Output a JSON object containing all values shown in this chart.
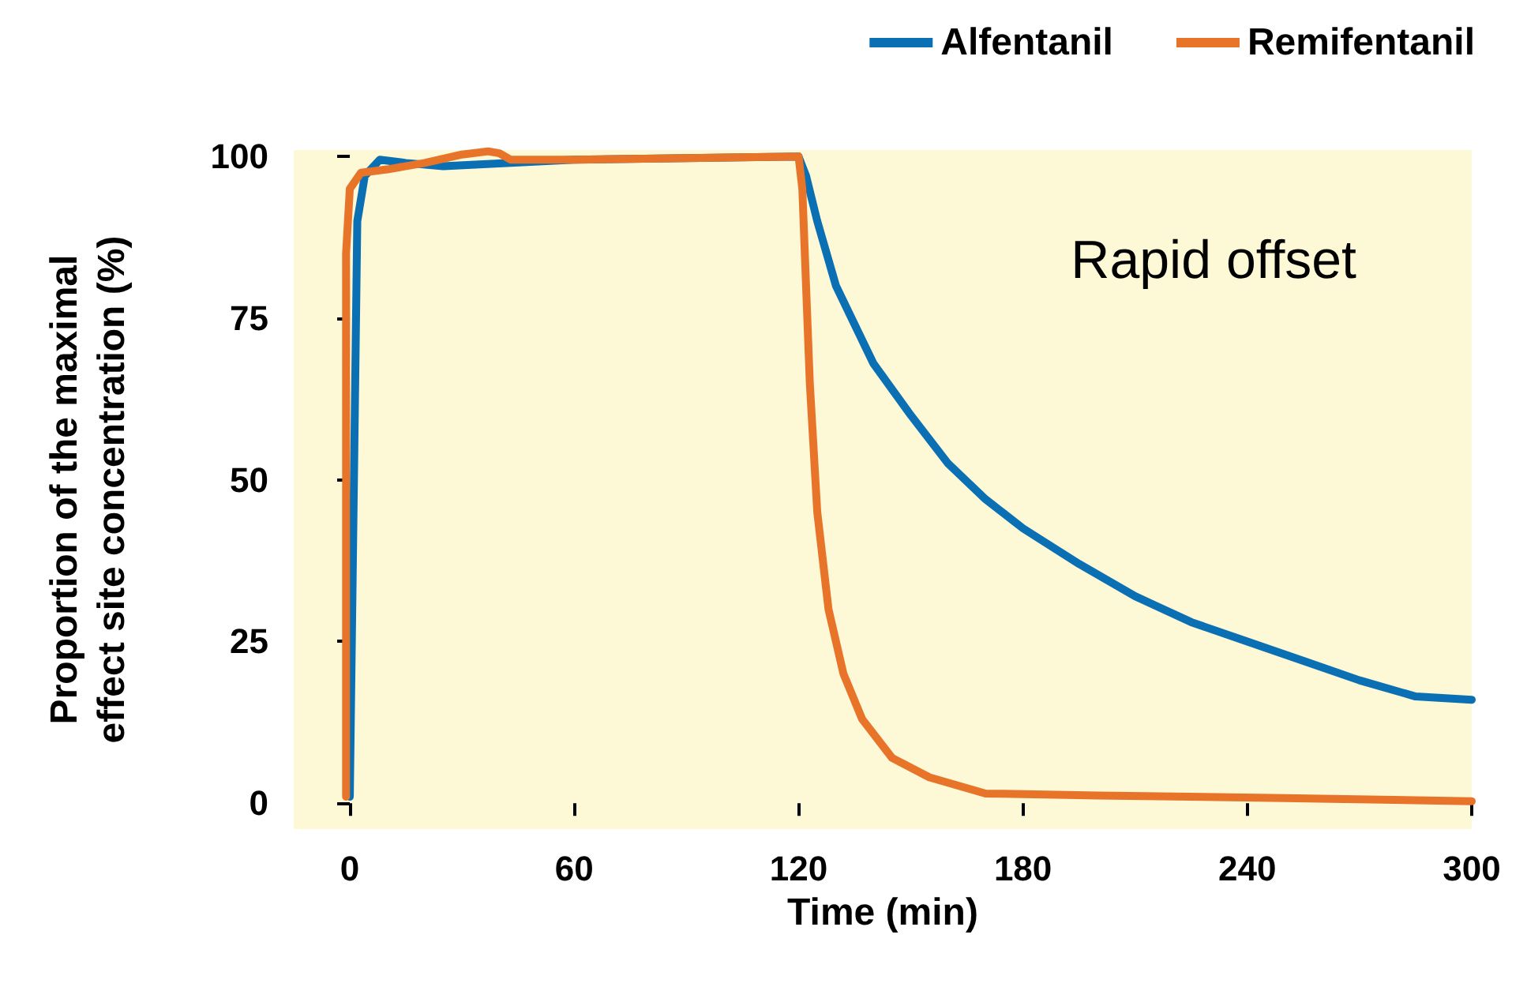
{
  "chart_data": {
    "type": "line",
    "xlabel": "Time (min)",
    "ylabel": "Proportion of the maximal\neffect site concentration (%)",
    "annotations": [
      "Rapid offset"
    ],
    "xlim": [
      -15,
      300
    ],
    "xticks": [
      0,
      60,
      120,
      180,
      240,
      300
    ],
    "ylim": [
      -4,
      101
    ],
    "yticks": [
      0,
      25,
      50,
      75,
      100
    ],
    "grid": false,
    "legend": "top right",
    "marker": "none",
    "line_style": "solid",
    "series": [
      {
        "name": "Alfentanil",
        "color": "#0a6fb3",
        "x": [
          0,
          2,
          4,
          8,
          15,
          25,
          60,
          120,
          122,
          125,
          130,
          140,
          150,
          160,
          170,
          180,
          195,
          210,
          225,
          240,
          255,
          270,
          285,
          300
        ],
        "values": [
          1,
          90,
          97,
          99.5,
          99,
          98.5,
          99.5,
          100,
          97,
          90,
          80,
          68,
          60,
          52.5,
          47,
          42.5,
          37,
          32,
          28,
          25,
          22,
          19,
          16.5,
          16
        ]
      },
      {
        "name": "Remifentanil",
        "color": "#e8742a",
        "x": [
          -1,
          -1,
          0,
          3,
          10,
          20,
          30,
          37,
          40,
          43,
          60,
          120,
          121,
          122,
          123,
          125,
          128,
          132,
          137,
          145,
          155,
          170,
          200,
          250,
          300
        ],
        "values": [
          1,
          85,
          95,
          97.5,
          98,
          99,
          100.3,
          100.8,
          100.5,
          99.5,
          99.5,
          100,
          95,
          80,
          65,
          45,
          30,
          20,
          13,
          7,
          4,
          1.5,
          1.2,
          0.8,
          0.3
        ]
      }
    ]
  }
}
